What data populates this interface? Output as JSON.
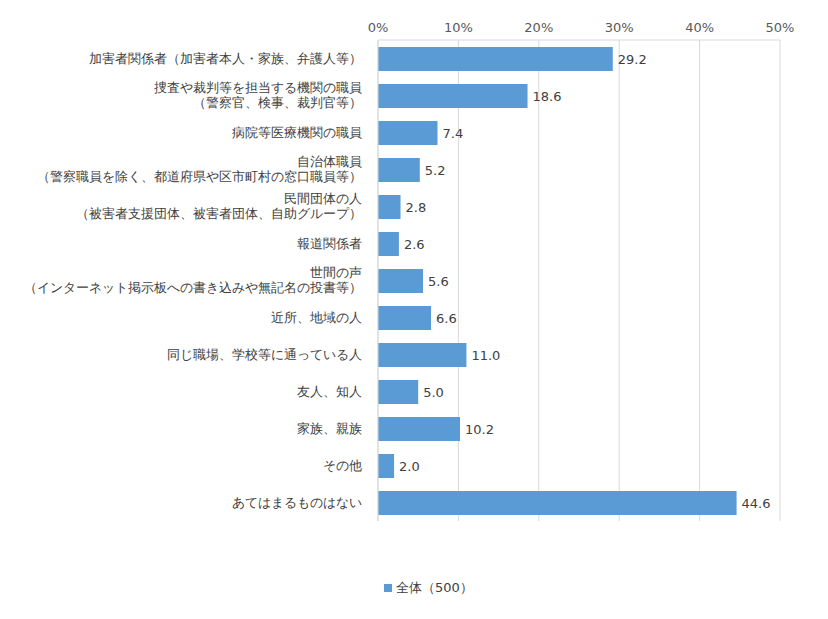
{
  "chart_data": {
    "type": "bar",
    "orientation": "horizontal",
    "categories": [
      "加害者関係者（加害者本人・家族、弁護人等）",
      "捜査や裁判等を担当する機関の職員\n（警察官、検事、裁判官等）",
      "病院等医療機関の職員",
      "自治体職員\n（警察職員を除く、都道府県や区市町村の窓口職員等）",
      "民間団体の人\n（被害者支援団体、被害者団体、自助グループ）",
      "報道関係者",
      "世間の声\n（インターネット掲示板への書き込みや無記名の投書等）",
      "近所、地域の人",
      "同じ職場、学校等に通っている人",
      "友人、知人",
      "家族、親族",
      "その他",
      "あてはまるものはない"
    ],
    "series": [
      {
        "name": "全体（500）",
        "color": "#5b9bd5",
        "values": [
          29.2,
          18.6,
          7.4,
          5.2,
          2.8,
          2.6,
          5.6,
          6.6,
          11.0,
          5.0,
          10.2,
          2.0,
          44.6
        ],
        "value_labels": [
          "29.2",
          "18.6",
          "7.4",
          "5.2",
          "2.8",
          "2.6",
          "5.6",
          "6.6",
          "11.0",
          "5.0",
          "10.2",
          "2.0",
          "44.6"
        ]
      }
    ],
    "xlim": [
      0,
      50
    ],
    "xticks": [
      {
        "value": 0,
        "label": "0%"
      },
      {
        "value": 10,
        "label": "10%"
      },
      {
        "value": 20,
        "label": "20%"
      },
      {
        "value": 30,
        "label": "30%"
      },
      {
        "value": 40,
        "label": "40%"
      },
      {
        "value": 50,
        "label": "50%"
      }
    ],
    "grid": true,
    "data_labels": true,
    "legend": "bottom"
  }
}
